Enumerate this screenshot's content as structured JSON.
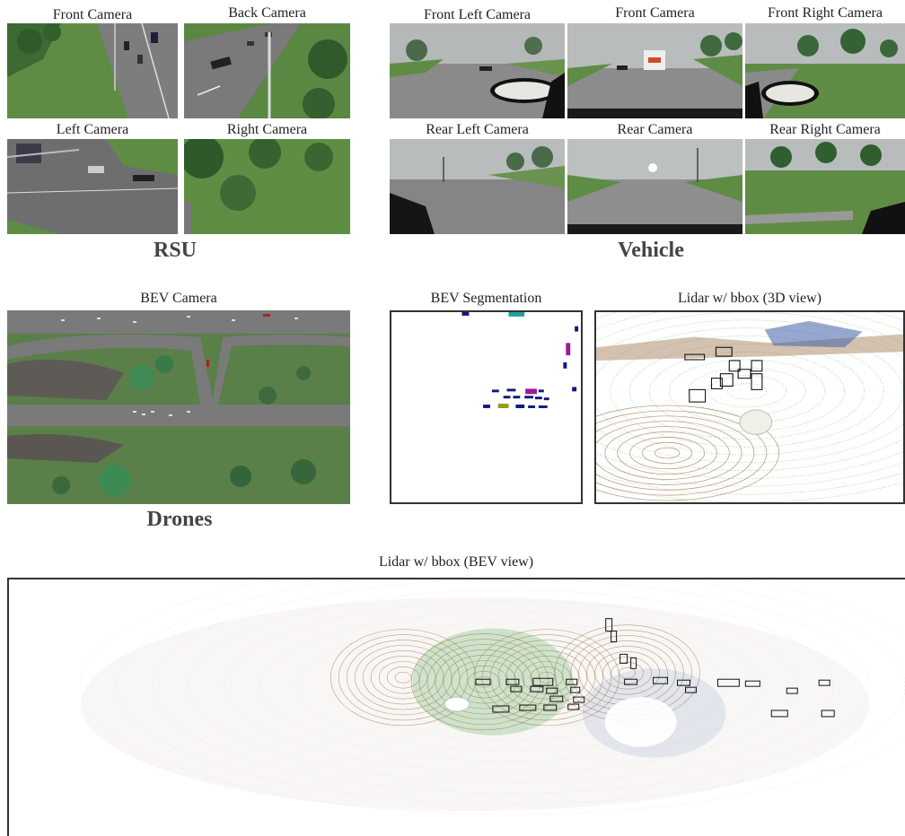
{
  "rsu": {
    "group_label": "RSU",
    "cameras": [
      "Front Camera",
      "Back Camera",
      "Left Camera",
      "Right Camera"
    ]
  },
  "vehicle": {
    "group_label": "Vehicle",
    "cameras": [
      "Front Left Camera",
      "Front Camera",
      "Front Right Camera",
      "Rear Left Camera",
      "Rear Camera",
      "Rear Right Camera"
    ]
  },
  "drones": {
    "group_label": "Drones",
    "bev_camera": "BEV Camera"
  },
  "bev_segmentation": "BEV Segmentation",
  "lidar_3d": "Lidar w/ bbox (3D view)",
  "lidar_bev": "Lidar w/ bbox (BEV view)",
  "colors": {
    "grass": "#5a8a42",
    "road": "#7c7c7c",
    "sky": "#b8bcbc",
    "tree": "#2e5a2e",
    "lidar_brown": "#a07850",
    "lidar_green": "#3c9a3c",
    "lidar_blue": "#4060a8",
    "seg_blue": "#101880",
    "seg_magenta": "#a01890",
    "seg_olive": "#9a9a10",
    "seg_teal": "#20a0a0"
  }
}
